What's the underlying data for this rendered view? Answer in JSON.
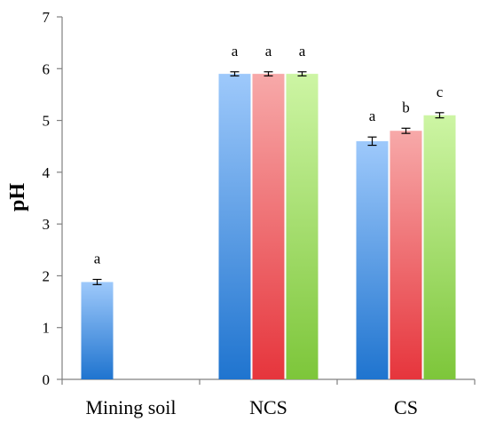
{
  "chart_data": {
    "type": "bar",
    "title": "",
    "xlabel": "",
    "ylabel": "pH",
    "ylim": [
      0,
      7
    ],
    "yticks": [
      0,
      1,
      2,
      3,
      4,
      5,
      6,
      7
    ],
    "grid": false,
    "legend": "none",
    "categories": [
      "Mining soil",
      "NCS",
      "CS"
    ],
    "series": [
      {
        "color": "#4f9be6",
        "values": [
          1.88,
          5.9,
          4.6
        ],
        "errors": [
          0.05,
          0.04,
          0.08
        ],
        "labels": [
          "a",
          "a",
          "a"
        ]
      },
      {
        "color": "#f0686c",
        "values": [
          null,
          5.9,
          4.8
        ],
        "errors": [
          null,
          0.04,
          0.05
        ],
        "labels": [
          null,
          "a",
          "b"
        ]
      },
      {
        "color": "#9ee05a",
        "values": [
          null,
          5.9,
          5.1
        ],
        "errors": [
          null,
          0.04,
          0.05
        ],
        "labels": [
          null,
          "a",
          "c"
        ]
      }
    ]
  }
}
